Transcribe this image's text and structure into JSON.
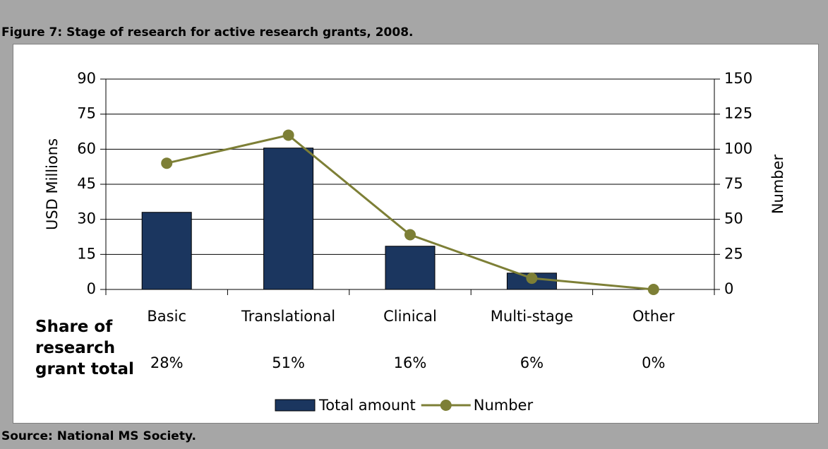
{
  "chart_data": {
    "type": "bar_line",
    "title": "Figure 7: Stage of research for active research grants, 2008.",
    "source": "Source: National MS Society.",
    "ylabel": "USD Millions",
    "y2label": "Number",
    "categories": [
      "Basic",
      "Translational",
      "Clinical",
      "Multi-stage",
      "Other"
    ],
    "series": [
      {
        "name": "Total amount",
        "type": "bar",
        "color": "#1b365f",
        "values": [
          33,
          60.5,
          18.5,
          7,
          0
        ]
      },
      {
        "name": "Number",
        "type": "line",
        "axis": "y2",
        "color": "#7d7f36",
        "values": [
          90,
          110,
          39,
          8,
          0
        ]
      }
    ],
    "ylim": [
      0,
      90
    ],
    "yticks": [
      0,
      15,
      30,
      45,
      60,
      75,
      90
    ],
    "y2lim": [
      0,
      150
    ],
    "y2ticks": [
      0,
      25,
      50,
      75,
      100,
      125,
      150
    ],
    "grid": true,
    "share_row": {
      "label": "Share of research grant total",
      "labels": [
        "28%",
        "51%",
        "16%",
        "6%",
        "0%"
      ]
    }
  }
}
